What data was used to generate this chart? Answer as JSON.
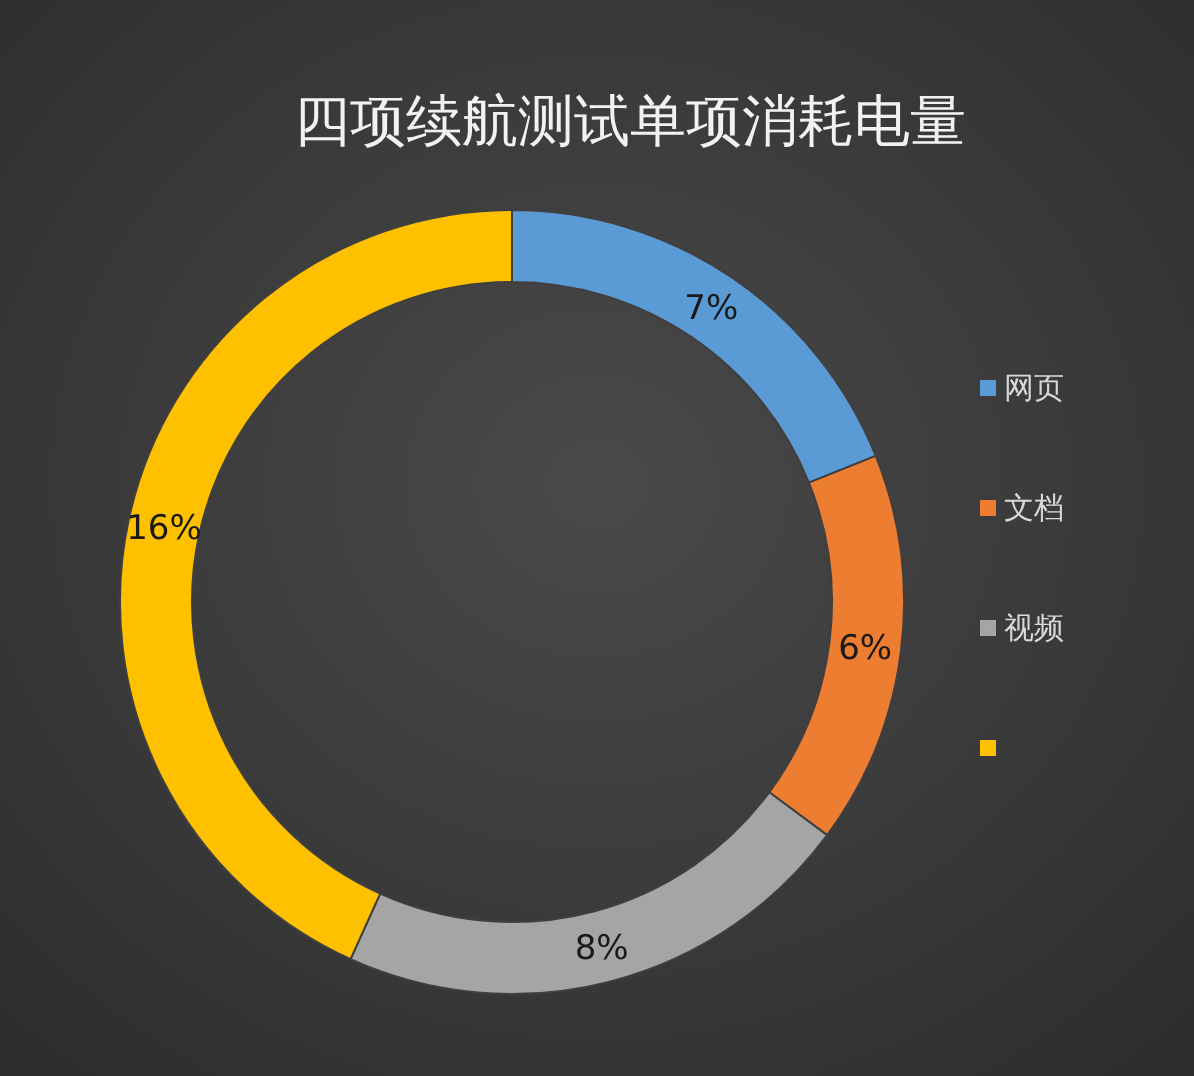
{
  "chart_data": {
    "type": "donut",
    "title": "四项续航测试单项消耗电量",
    "categories": [
      "网页",
      "文档",
      "视频",
      null
    ],
    "values": [
      7,
      6,
      8,
      16
    ],
    "value_labels": [
      "7%",
      "6%",
      "8%",
      "16%"
    ],
    "colors": [
      "#5b9bd5",
      "#ed7d31",
      "#a5a5a5",
      "#ffc000"
    ],
    "legend": "right"
  }
}
